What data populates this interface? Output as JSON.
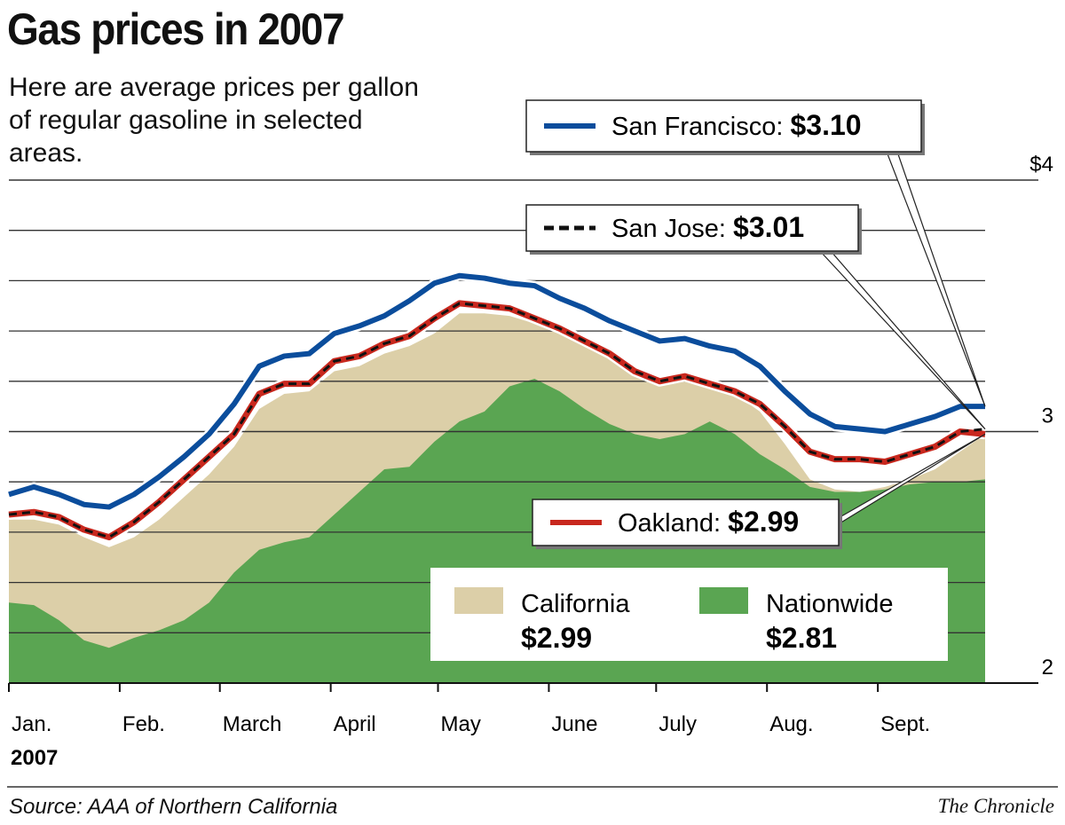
{
  "title": "Gas prices in 2007",
  "subtitle": "Here are average prices per gallon of regular gasoline in selected areas.",
  "source": "Source: AAA of Northern California",
  "credit": "The Chronicle",
  "colors": {
    "san_francisco": "#0b4d9c",
    "san_jose": "#111111",
    "oakland": "#c8281e",
    "california": "#dccfa8",
    "nationwide": "#5aa552",
    "grid": "#333333"
  },
  "chart_data": {
    "type": "line",
    "title": "Gas prices in 2007",
    "ylim": [
      2,
      4
    ],
    "yticks": [
      {
        "value": 4,
        "label": "$4"
      },
      {
        "value": 3,
        "label": "3"
      },
      {
        "value": 2,
        "label": "2"
      }
    ],
    "grid": true,
    "grid_step": 0.2,
    "xticks": [
      {
        "date": "2007-01-01",
        "label": "Jan."
      },
      {
        "date": "2007-02-01",
        "label": "Feb."
      },
      {
        "date": "2007-03-01",
        "label": "March"
      },
      {
        "date": "2007-04-01",
        "label": "April"
      },
      {
        "date": "2007-05-01",
        "label": "May"
      },
      {
        "date": "2007-06-01",
        "label": "June"
      },
      {
        "date": "2007-07-01",
        "label": "July"
      },
      {
        "date": "2007-08-01",
        "label": "Aug."
      },
      {
        "date": "2007-09-01",
        "label": "Sept."
      }
    ],
    "year_label": "2007",
    "x_start": "2007-01-01",
    "x_step_days": 7,
    "series": [
      {
        "name": "Nationwide",
        "style": "area",
        "label_value": "$2.81",
        "values": [
          2.32,
          2.31,
          2.25,
          2.17,
          2.14,
          2.18,
          2.21,
          2.25,
          2.32,
          2.44,
          2.53,
          2.56,
          2.58,
          2.67,
          2.76,
          2.85,
          2.86,
          2.96,
          3.04,
          3.08,
          3.18,
          3.21,
          3.16,
          3.09,
          3.03,
          2.99,
          2.97,
          2.99,
          3.04,
          2.99,
          2.91,
          2.85,
          2.78,
          2.76,
          2.76,
          2.77,
          2.79,
          2.8,
          2.8,
          2.81
        ]
      },
      {
        "name": "California",
        "style": "area",
        "label_value": "$2.99",
        "values": [
          2.65,
          2.65,
          2.63,
          2.58,
          2.54,
          2.58,
          2.65,
          2.74,
          2.83,
          2.94,
          3.09,
          3.15,
          3.16,
          3.24,
          3.26,
          3.31,
          3.34,
          3.39,
          3.47,
          3.47,
          3.46,
          3.43,
          3.39,
          3.35,
          3.3,
          3.24,
          3.2,
          3.21,
          3.18,
          3.15,
          3.08,
          2.95,
          2.81,
          2.77,
          2.76,
          2.78,
          2.81,
          2.85,
          2.92,
          2.99
        ]
      },
      {
        "name": "San Francisco",
        "style": "line",
        "label_value": "$3.10",
        "values": [
          2.75,
          2.78,
          2.75,
          2.71,
          2.7,
          2.75,
          2.82,
          2.9,
          2.99,
          3.11,
          3.26,
          3.3,
          3.31,
          3.39,
          3.42,
          3.46,
          3.52,
          3.59,
          3.62,
          3.61,
          3.59,
          3.58,
          3.53,
          3.49,
          3.44,
          3.4,
          3.36,
          3.37,
          3.34,
          3.32,
          3.26,
          3.16,
          3.07,
          3.02,
          3.01,
          3.0,
          3.03,
          3.06,
          3.1,
          3.1
        ]
      },
      {
        "name": "Oakland",
        "style": "line",
        "label_value": "$2.99",
        "values": [
          2.67,
          2.68,
          2.66,
          2.61,
          2.58,
          2.64,
          2.72,
          2.81,
          2.9,
          2.99,
          3.15,
          3.19,
          3.19,
          3.28,
          3.3,
          3.35,
          3.38,
          3.45,
          3.51,
          3.5,
          3.49,
          3.45,
          3.41,
          3.36,
          3.31,
          3.24,
          3.2,
          3.22,
          3.19,
          3.16,
          3.11,
          3.02,
          2.92,
          2.89,
          2.89,
          2.88,
          2.91,
          2.94,
          3.0,
          2.99
        ]
      },
      {
        "name": "San Jose",
        "style": "dashed",
        "label_value": "$3.01",
        "values": [
          2.67,
          2.68,
          2.66,
          2.61,
          2.58,
          2.64,
          2.72,
          2.81,
          2.9,
          2.99,
          3.15,
          3.19,
          3.19,
          3.28,
          3.3,
          3.35,
          3.38,
          3.45,
          3.51,
          3.5,
          3.49,
          3.45,
          3.41,
          3.36,
          3.31,
          3.24,
          3.2,
          3.22,
          3.19,
          3.16,
          3.11,
          3.02,
          2.92,
          2.89,
          2.89,
          2.88,
          2.91,
          2.94,
          3.0,
          3.01
        ]
      }
    ]
  }
}
